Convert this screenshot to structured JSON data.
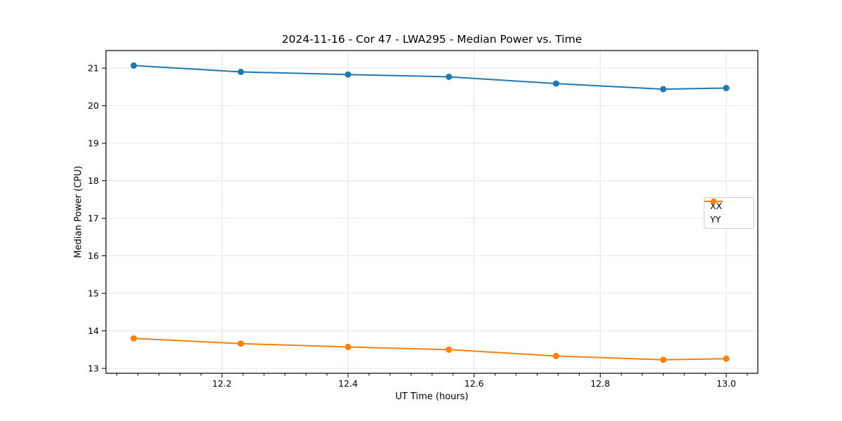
{
  "figure": {
    "title": "2024-11-16 - Cor 47 - LWA295 - Median Power vs. Time",
    "xlabel": "UT Time (hours)",
    "ylabel": "Median Power (CPU)",
    "background_color": "#ffffff"
  },
  "chart_data": {
    "type": "line",
    "title": "2024-11-16 - Cor 47 - LWA295 - Median Power vs. Time",
    "xlabel": "UT Time (hours)",
    "ylabel": "Median Power (CPU)",
    "x": [
      12.06,
      12.23,
      12.4,
      12.56,
      12.73,
      12.9,
      13.0
    ],
    "series": [
      {
        "name": "XX",
        "color": "#1f77b4",
        "values": [
          21.07,
          20.9,
          20.83,
          20.77,
          20.59,
          20.44,
          20.47
        ]
      },
      {
        "name": "YY",
        "color": "#ff7f0e",
        "values": [
          13.8,
          13.66,
          13.57,
          13.5,
          13.33,
          13.23,
          13.26
        ]
      }
    ],
    "xlim": [
      12.016,
      13.05
    ],
    "ylim": [
      12.87,
      21.47
    ],
    "xticks": [
      12.2,
      12.4,
      12.6,
      12.8,
      13.0
    ],
    "xtick_labels": [
      "12.2",
      "12.4",
      "12.6",
      "12.8",
      "13.0"
    ],
    "yticks": [
      13,
      14,
      15,
      16,
      17,
      18,
      19,
      20,
      21
    ],
    "x_minor_tick_step": 0.033333,
    "grid": true,
    "grid_color": "#e6e6e6",
    "axis_color": "#000000",
    "legend_position": "center right",
    "legend_entries": [
      "XX",
      "YY"
    ]
  }
}
